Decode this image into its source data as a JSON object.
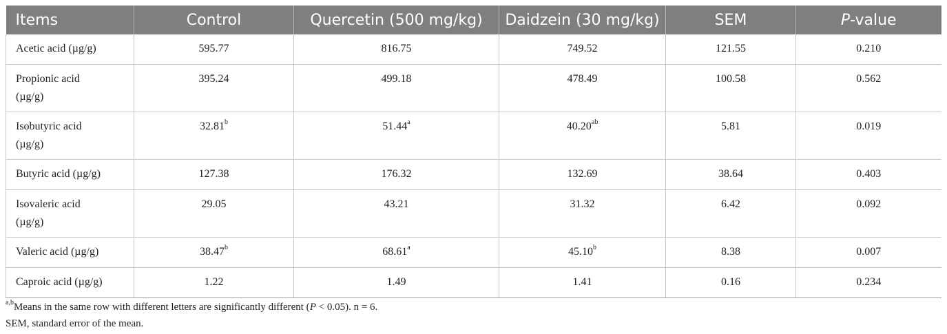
{
  "table": {
    "headers": [
      "Items",
      "Control",
      "Quercetin (500 mg/kg)",
      "Daidzein (30 mg/kg)",
      "SEM",
      "P",
      "-value"
    ],
    "rows": [
      {
        "item": "Acetic acid (µg/g)",
        "control": "595.77",
        "control_sup": "",
        "quercetin": "816.75",
        "quercetin_sup": "",
        "daidzein": "749.52",
        "daidzein_sup": "",
        "sem": "121.55",
        "p": "0.210"
      },
      {
        "item": "Propionic acid (µg/g)",
        "control": "395.24",
        "control_sup": "",
        "quercetin": "499.18",
        "quercetin_sup": "",
        "daidzein": "478.49",
        "daidzein_sup": "",
        "sem": "100.58",
        "p": "0.562"
      },
      {
        "item": "Isobutyric acid (µg/g)",
        "control": "32.81",
        "control_sup": "b",
        "quercetin": "51.44",
        "quercetin_sup": "a",
        "daidzein": "40.20",
        "daidzein_sup": "ab",
        "sem": "5.81",
        "p": "0.019"
      },
      {
        "item": "Butyric acid (µg/g)",
        "control": "127.38",
        "control_sup": "",
        "quercetin": "176.32",
        "quercetin_sup": "",
        "daidzein": "132.69",
        "daidzein_sup": "",
        "sem": "38.64",
        "p": "0.403"
      },
      {
        "item": "Isovaleric acid (µg/g)",
        "control": "29.05",
        "control_sup": "",
        "quercetin": "43.21",
        "quercetin_sup": "",
        "daidzein": "31.32",
        "daidzein_sup": "",
        "sem": "6.42",
        "p": "0.092"
      },
      {
        "item": "Valeric acid (µg/g)",
        "control": "38.47",
        "control_sup": "b",
        "quercetin": "68.61",
        "quercetin_sup": "a",
        "daidzein": "45.10",
        "daidzein_sup": "b",
        "sem": "8.38",
        "p": "0.007"
      },
      {
        "item": "Caproic acid (µg/g)",
        "control": "1.22",
        "control_sup": "",
        "quercetin": "1.49",
        "quercetin_sup": "",
        "daidzein": "1.41",
        "daidzein_sup": "",
        "sem": "0.16",
        "p": "0.234"
      }
    ]
  },
  "footnotes": {
    "sup": "a,b",
    "note1_a": "Means in the same row with different letters are significantly different (",
    "note1_p": "P",
    "note1_b": " < 0.05). n = 6.",
    "note2": "SEM, standard error of the mean."
  },
  "colors": {
    "header_bg": "#7f7f7f",
    "header_text": "#ffffff",
    "grid": "#c8c8c8"
  }
}
